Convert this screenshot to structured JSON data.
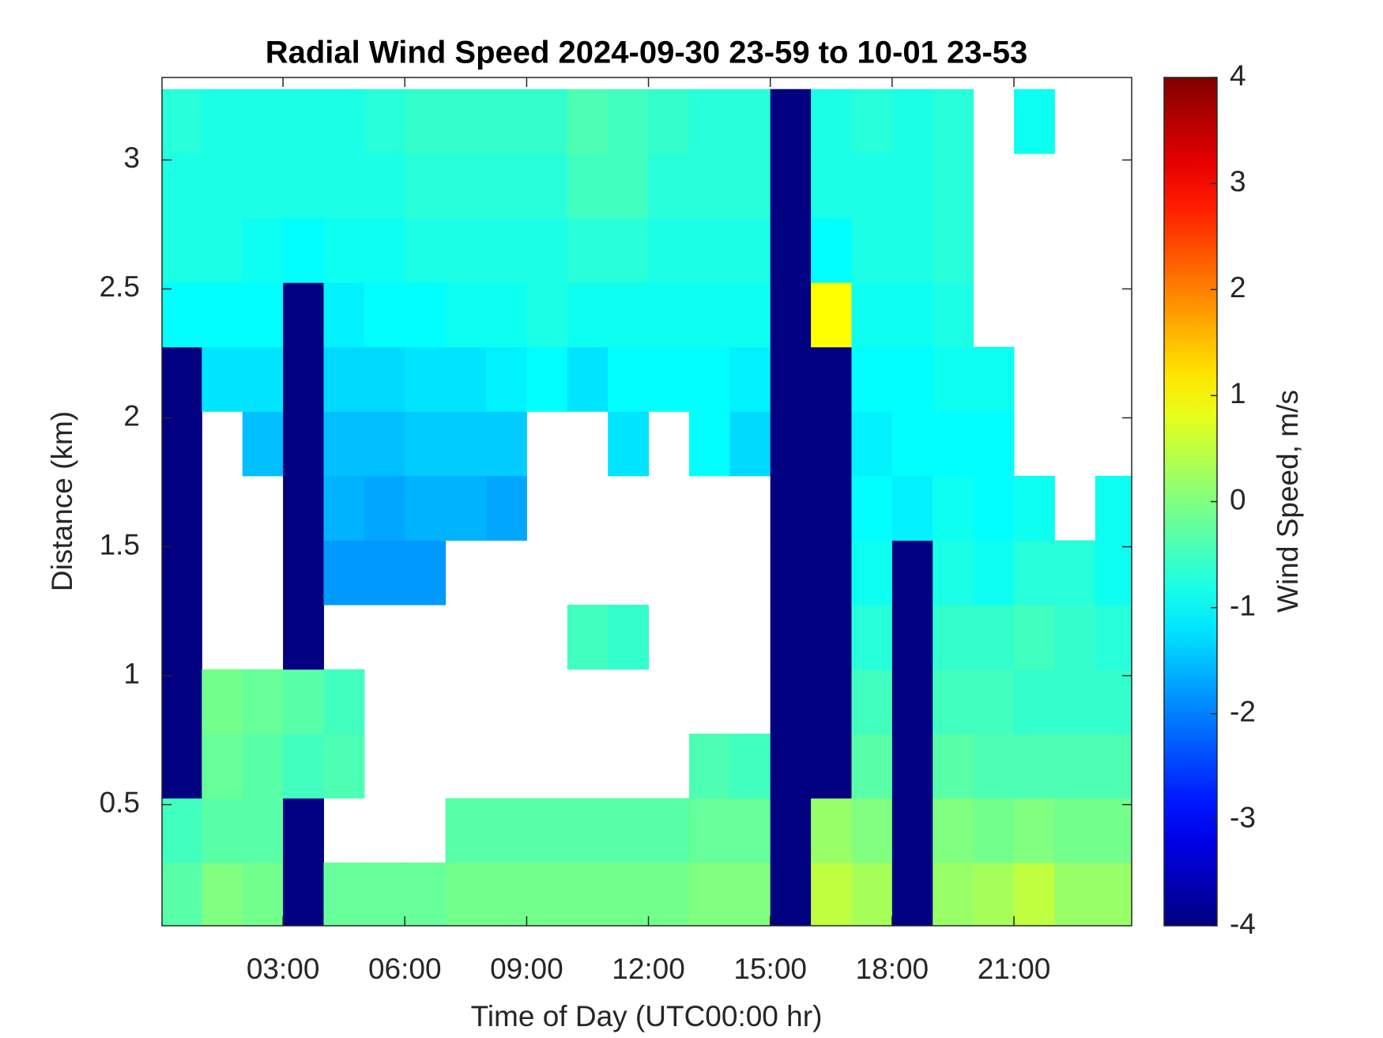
{
  "chart_data": {
    "type": "heatmap",
    "title": "Radial Wind Speed 2024-09-30 23-59 to 10-01 23-53",
    "xlabel": "Time of Day (UTC00:00 hr)",
    "ylabel": "Distance (km)",
    "colorbar_label": "Wind Speed, m/s",
    "colormap": "jet",
    "x": [
      0.5,
      1.5,
      2.5,
      3.5,
      4.5,
      5.5,
      6.5,
      7.5,
      8.5,
      9.5,
      10.5,
      11.5,
      12.5,
      13.5,
      14.5,
      15.5,
      16.5,
      17.5,
      18.5,
      19.5,
      20.5,
      21.5,
      22.5,
      23.5
    ],
    "y": [
      0.15,
      0.4,
      0.65,
      0.9,
      1.15,
      1.4,
      1.65,
      1.9,
      2.15,
      2.4,
      2.65,
      2.9,
      3.15
    ],
    "z": [
      [
        -0.3,
        -0.5,
        -4,
        -4,
        -4,
        -4,
        -4,
        -4,
        -4,
        -1,
        -0.8,
        -0.8,
        -0.7
      ],
      [
        0,
        -0.3,
        -0.2,
        -0.1,
        null,
        null,
        null,
        null,
        -1.2,
        -1,
        -0.8,
        -0.8,
        -0.8
      ],
      [
        -0.1,
        -0.3,
        -0.3,
        -0.2,
        null,
        null,
        null,
        -1.5,
        -1.2,
        -1,
        -0.9,
        -0.8,
        -0.8
      ],
      [
        -4,
        -4,
        -0.5,
        -0.3,
        -4,
        -4,
        -4,
        -4,
        -4,
        -4,
        -1,
        -0.8,
        -0.8
      ],
      [
        -0.2,
        null,
        -0.4,
        -0.5,
        null,
        -1.8,
        -1.6,
        -1.5,
        -1.3,
        -1.1,
        -0.9,
        -0.8,
        -0.8
      ],
      [
        -0.2,
        null,
        null,
        null,
        null,
        -1.8,
        -1.7,
        -1.5,
        -1.3,
        -1,
        -0.9,
        -0.8,
        -0.7
      ],
      [
        -0.2,
        null,
        null,
        null,
        null,
        -1.8,
        -1.6,
        -1.4,
        -1.2,
        -1,
        -0.8,
        -0.7,
        -0.6
      ],
      [
        -0.1,
        -0.3,
        null,
        null,
        null,
        null,
        -1.6,
        -1.4,
        -1.2,
        -0.9,
        -0.8,
        -0.7,
        -0.6
      ],
      [
        -0.1,
        -0.3,
        null,
        null,
        null,
        null,
        -1.7,
        -1.4,
        -1.1,
        -0.9,
        -0.8,
        -0.7,
        -0.6
      ],
      [
        -0.1,
        -0.3,
        null,
        null,
        null,
        null,
        null,
        null,
        -1,
        -0.8,
        -0.8,
        -0.7,
        -0.6
      ],
      [
        -0.1,
        -0.3,
        null,
        null,
        -0.5,
        null,
        null,
        null,
        -1.2,
        -0.9,
        -0.7,
        -0.5,
        -0.4
      ],
      [
        -0.1,
        -0.3,
        null,
        null,
        -0.6,
        null,
        null,
        -1.2,
        -1,
        -0.9,
        -0.7,
        -0.5,
        -0.5
      ],
      [
        -0.1,
        -0.3,
        null,
        null,
        null,
        null,
        null,
        null,
        -1,
        -0.9,
        -0.8,
        -0.7,
        -0.6
      ],
      [
        0,
        -0.2,
        -0.4,
        null,
        null,
        null,
        null,
        -1,
        -1,
        -0.9,
        -0.8,
        -0.7,
        -0.7
      ],
      [
        0,
        -0.2,
        -0.5,
        null,
        null,
        null,
        null,
        -1.3,
        -1.1,
        -0.9,
        -0.8,
        -0.7,
        -0.7
      ],
      [
        -4,
        -4,
        -4,
        -4,
        -4,
        -4,
        -4,
        -4,
        -4,
        -4,
        -4,
        -4,
        -4
      ],
      [
        0.5,
        0.2,
        -4,
        -4,
        -4,
        -4,
        -4,
        -4,
        -4,
        1,
        -1,
        -0.8,
        -0.8
      ],
      [
        0.3,
        0,
        -0.3,
        -0.5,
        -0.7,
        -0.9,
        -1,
        -1.1,
        -1,
        -0.9,
        -0.8,
        -0.8,
        -0.7
      ],
      [
        -4,
        -4,
        -4,
        -4,
        -4,
        -4,
        -1.1,
        -1,
        -1,
        -0.9,
        -0.8,
        -0.8,
        -0.8
      ],
      [
        0.2,
        0,
        -0.3,
        -0.5,
        -0.6,
        -0.8,
        -0.9,
        -1,
        -0.9,
        -0.8,
        -0.7,
        -0.7,
        -0.7
      ],
      [
        0.3,
        -0.1,
        -0.4,
        -0.5,
        -0.6,
        -0.9,
        -1,
        -1,
        -0.9,
        null,
        null,
        null,
        null
      ],
      [
        0.5,
        0,
        -0.4,
        -0.6,
        -0.5,
        -0.7,
        -0.9,
        null,
        null,
        null,
        null,
        null,
        -0.9
      ],
      [
        0.2,
        -0.1,
        -0.4,
        -0.6,
        -0.6,
        -0.7,
        null,
        null,
        null,
        null,
        null,
        null,
        null
      ],
      [
        0.2,
        -0.1,
        -0.4,
        -0.6,
        -0.7,
        -0.9,
        -0.9,
        null,
        null,
        null,
        null,
        null,
        null
      ]
    ],
    "xlim": [
      0.02,
      23.9
    ],
    "ylim": [
      0.03,
      3.32
    ],
    "xticks": [
      {
        "value": 3,
        "label": "03:00"
      },
      {
        "value": 6,
        "label": "06:00"
      },
      {
        "value": 9,
        "label": "09:00"
      },
      {
        "value": 12,
        "label": "12:00"
      },
      {
        "value": 15,
        "label": "15:00"
      },
      {
        "value": 18,
        "label": "18:00"
      },
      {
        "value": 21,
        "label": "21:00"
      }
    ],
    "yticks": [
      0.5,
      1,
      1.5,
      2,
      2.5,
      3
    ],
    "clim": [
      -4,
      4
    ],
    "cticks": [
      -4,
      -3,
      -2,
      -1,
      0,
      1,
      2,
      3,
      4
    ]
  }
}
